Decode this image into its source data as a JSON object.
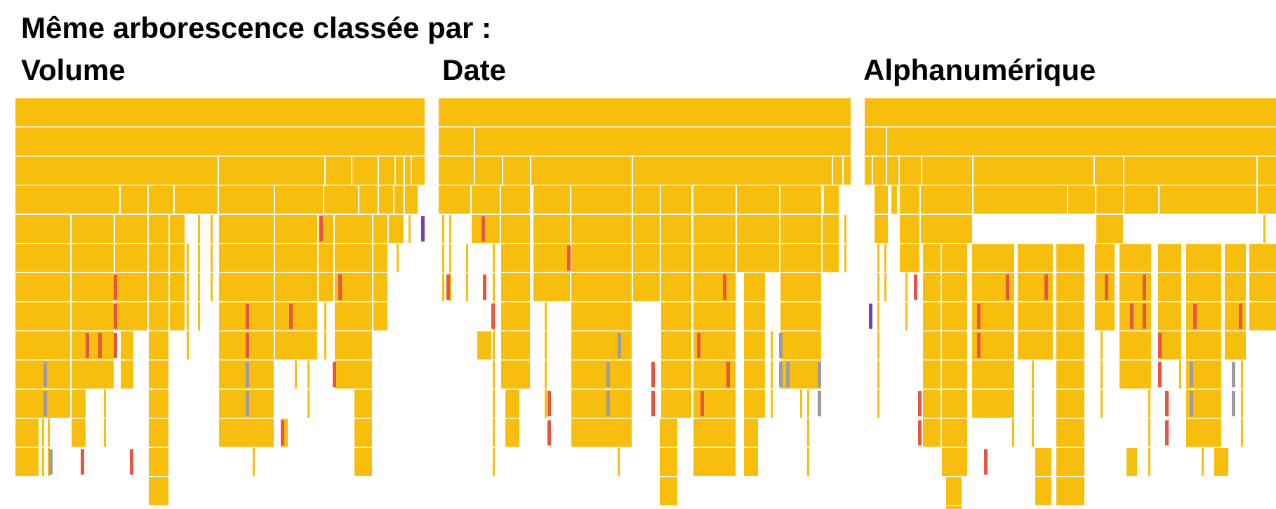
{
  "heading": "Même arborescence classée par :",
  "colors": {
    "folder": "#f7be0e",
    "file_red": "#e8553f",
    "file_gray": "#9c9c9c",
    "file_purple": "#7a3fb0",
    "separator": "#ffffff"
  },
  "panels": [
    {
      "label": "Volume",
      "sort": "volume"
    },
    {
      "label": "Date",
      "sort": "date"
    },
    {
      "label": "Alphanumérique",
      "sort": "alphanumeric"
    }
  ]
}
